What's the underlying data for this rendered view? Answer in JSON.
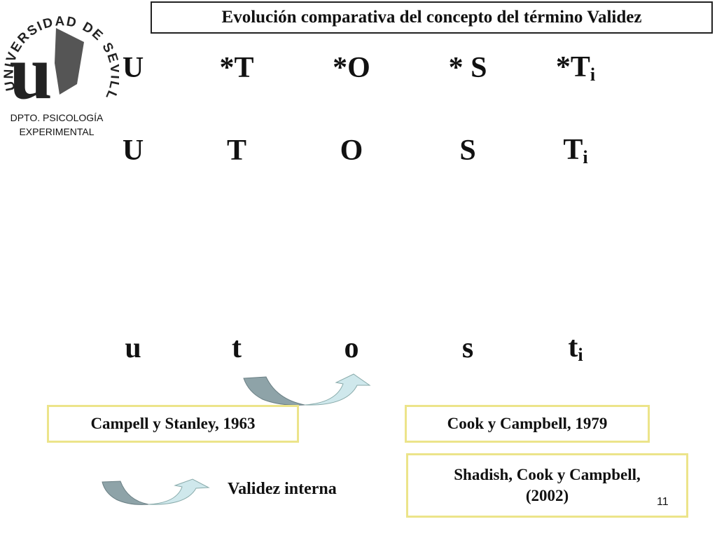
{
  "logo": {
    "arc_text": "UNIVERSIDAD DE SEVILLA",
    "letter": "u",
    "department": [
      "DPTO. PSICOLOGÍA",
      "EXPERIMENTAL"
    ]
  },
  "title": "Evolución comparativa del concepto del término Validez",
  "rows": [
    [
      {
        "text": "U"
      },
      {
        "text": "*T"
      },
      {
        "text": "*O"
      },
      {
        "text": "* S"
      },
      {
        "text": "*T",
        "sub": "i"
      }
    ],
    [
      {
        "text": "U"
      },
      {
        "text": "T"
      },
      {
        "text": "O"
      },
      {
        "text": "S"
      },
      {
        "text": "T",
        "sub": "i"
      }
    ],
    [
      {
        "text": "u"
      },
      {
        "text": "t"
      },
      {
        "text": "o"
      },
      {
        "text": "s"
      },
      {
        "text": "t",
        "sub": "i"
      }
    ]
  ],
  "references": {
    "first": "Campell y Stanley, 1963",
    "second": "Cook y Campbell, 1979",
    "third": [
      "Shadish, Cook y Campbell,",
      "(2002)"
    ]
  },
  "legend": "Validez interna",
  "page_number": "11"
}
